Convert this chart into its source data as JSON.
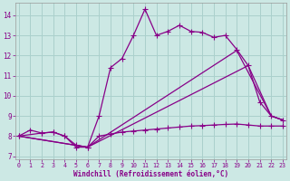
{
  "xlabel": "Windchill (Refroidissement éolien,°C)",
  "xlim": [
    -0.3,
    23.3
  ],
  "ylim": [
    6.85,
    14.6
  ],
  "yticks": [
    7,
    8,
    9,
    10,
    11,
    12,
    13,
    14
  ],
  "xticks": [
    0,
    1,
    2,
    3,
    4,
    5,
    6,
    7,
    8,
    9,
    10,
    11,
    12,
    13,
    14,
    15,
    16,
    17,
    18,
    19,
    20,
    21,
    22,
    23
  ],
  "bg_color": "#cce8e4",
  "grid_color": "#aad0cc",
  "line_color": "#880088",
  "curve_wavy_x": [
    0,
    2,
    3,
    4,
    5,
    6,
    7,
    8,
    9,
    10,
    11,
    12,
    13,
    14,
    15,
    16,
    17,
    18,
    19,
    20,
    21,
    22,
    23
  ],
  "curve_wavy_y": [
    8.0,
    8.15,
    8.2,
    8.0,
    7.45,
    7.45,
    9.0,
    11.4,
    11.85,
    13.0,
    14.3,
    13.0,
    13.2,
    13.5,
    13.2,
    13.15,
    12.9,
    13.0,
    12.3,
    11.5,
    9.7,
    9.0,
    8.8
  ],
  "curve_diag1_x": [
    0,
    6,
    19,
    22,
    23
  ],
  "curve_diag1_y": [
    8.0,
    7.45,
    12.25,
    9.0,
    8.8
  ],
  "curve_diag2_x": [
    0,
    6,
    20,
    22,
    23
  ],
  "curve_diag2_y": [
    8.0,
    7.45,
    11.5,
    9.0,
    8.8
  ],
  "curve_flat_x": [
    0,
    1,
    2,
    3,
    4,
    5,
    6,
    7,
    8,
    9,
    10,
    11,
    12,
    13,
    14,
    15,
    16,
    17,
    18,
    19,
    20,
    21,
    22,
    23
  ],
  "curve_flat_y": [
    8.0,
    8.3,
    8.15,
    8.2,
    8.0,
    7.55,
    7.45,
    8.0,
    8.1,
    8.2,
    8.25,
    8.3,
    8.35,
    8.4,
    8.45,
    8.5,
    8.52,
    8.55,
    8.58,
    8.6,
    8.55,
    8.5,
    8.5,
    8.5
  ]
}
